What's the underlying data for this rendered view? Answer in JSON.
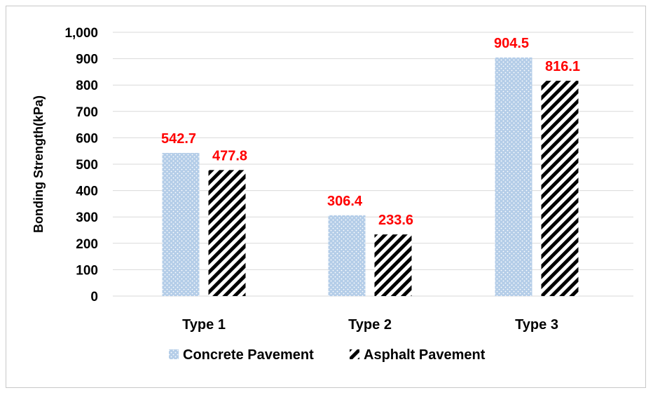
{
  "chart_data": {
    "type": "bar",
    "categories": [
      "Type 1",
      "Type 2",
      "Type 3"
    ],
    "series": [
      {
        "name": "Concrete Pavement",
        "values": [
          542.7,
          306.4,
          904.5
        ],
        "data_labels": [
          "542.7",
          "306.4",
          "904.5"
        ],
        "color": "#b4cde8",
        "pattern": "dotted"
      },
      {
        "name": "Asphalt Pavement",
        "values": [
          477.8,
          233.6,
          816.1
        ],
        "data_labels": [
          "477.8",
          "233.6",
          "816.1"
        ],
        "color": "#000000",
        "pattern": "diagonal-stripes"
      }
    ],
    "title": "",
    "xlabel": "",
    "ylabel": "Bonding Strength(kPa)",
    "ylim": [
      0,
      1000
    ],
    "yticks": [
      0,
      100,
      200,
      300,
      400,
      500,
      600,
      700,
      800,
      900,
      1000
    ],
    "ytick_labels": [
      "0",
      "100",
      "200",
      "300",
      "400",
      "500",
      "600",
      "700",
      "800",
      "900",
      "1,000"
    ],
    "grid": true,
    "legend": "bottom",
    "data_label_color": "#ff0000"
  }
}
